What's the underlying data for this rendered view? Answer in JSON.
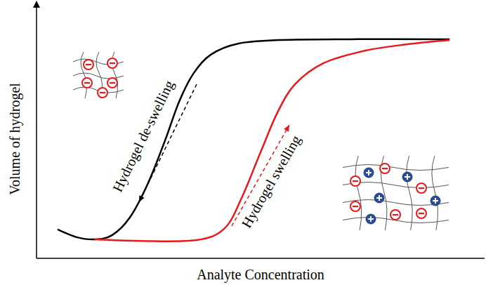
{
  "chart_data": {
    "type": "line",
    "x_label": "Analyte Concentration",
    "y_label": "Volume of hydrogel",
    "xlim": [
      0,
      100
    ],
    "ylim": [
      0,
      100
    ],
    "tick_labels": false,
    "grid": false,
    "series": [
      {
        "color": "#000000",
        "line_style": "solid",
        "x": [
          4.7,
          9.1,
          13.0,
          16.9,
          20.8,
          24.8,
          28.7,
          31.8,
          35.0,
          38.9,
          45.1,
          54.5,
          70.2,
          92.2
        ],
        "values": [
          11.4,
          8.3,
          7.5,
          9.2,
          16.1,
          29.4,
          46.7,
          61.9,
          73.1,
          80.6,
          85.0,
          86.4,
          86.7,
          86.7
        ]
      },
      {
        "color": "#e8191c",
        "line_style": "solid",
        "x": [
          13.0,
          23.2,
          35.7,
          42.0,
          45.9,
          49.8,
          53.8,
          57.7,
          64.0,
          73.4,
          82.8,
          92.2
        ],
        "values": [
          7.5,
          6.9,
          7.2,
          11.9,
          24.4,
          41.1,
          57.8,
          68.9,
          77.2,
          82.2,
          84.7,
          86.4
        ]
      }
    ],
    "annotations": [
      {
        "text": "Hydrogel de-swelling",
        "color": "#000000"
      },
      {
        "text": "Hydrogel swelling",
        "color": "#e8191c"
      }
    ]
  }
}
